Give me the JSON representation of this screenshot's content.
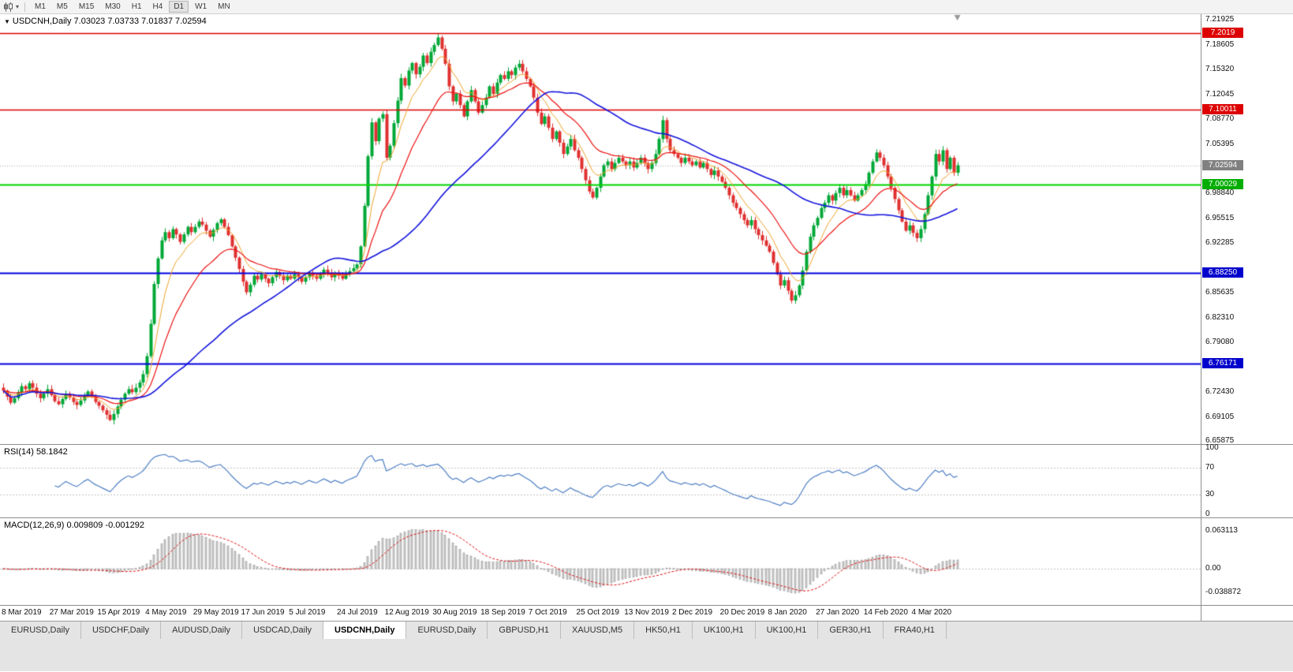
{
  "window": {
    "title": "USDCNH,Daily"
  },
  "toolbar": {
    "timeframes": [
      "M1",
      "M5",
      "M15",
      "M30",
      "H1",
      "H4",
      "D1",
      "W1",
      "MN"
    ],
    "active_timeframe": "D1"
  },
  "chart": {
    "symbol": "USDCNH",
    "period": "Daily",
    "ohlc_label": "USDCNH,Daily 7.03023 7.03733 7.01837 7.02594"
  },
  "indicators": {
    "rsi": {
      "name": "RSI(14)",
      "value": "58.1842",
      "color": "#4e7fc4",
      "levels": [
        70,
        30
      ],
      "axis_labels": [
        {
          "text": "100",
          "value": 100
        },
        {
          "text": "70",
          "value": 70
        },
        {
          "text": "30",
          "value": 30
        },
        {
          "text": "0",
          "value": 0
        }
      ]
    },
    "macd": {
      "name": "MACD(12,26,9)",
      "values": "0.009809 -0.001292",
      "hist_color": "#cccccc",
      "hist_outline": "#9a9a9a",
      "signal_color": "#e01010",
      "axis_labels": [
        {
          "text": "0.063113",
          "value": 0.063113
        },
        {
          "text": "0.00",
          "value": 0
        },
        {
          "text": "-0.038872",
          "value": -0.038872
        }
      ]
    }
  },
  "price_axis": {
    "ticks": [
      "7.21925",
      "7.18605",
      "7.15320",
      "7.12045",
      "7.08770",
      "7.05395",
      "6.98840",
      "6.95515",
      "6.92285",
      "6.85635",
      "6.82310",
      "6.79080",
      "6.72430",
      "6.69105",
      "6.65875"
    ],
    "badges": [
      {
        "text": "7.2019",
        "price": 7.2019,
        "color": "#dd0000"
      },
      {
        "text": "7.10011",
        "price": 7.10011,
        "color": "#dd0000"
      },
      {
        "text": "7.02594",
        "price": 7.02594,
        "color": "#808080"
      },
      {
        "text": "7.00029",
        "price": 7.00029,
        "color": "#00ad00"
      },
      {
        "text": "6.88250",
        "price": 6.8825,
        "color": "#0000cc"
      },
      {
        "text": "6.76171",
        "price": 6.76171,
        "color": "#0000cc"
      }
    ]
  },
  "date_axis": {
    "labels": [
      "8 Mar 2019",
      "27 Mar 2019",
      "15 Apr 2019",
      "4 May 2019",
      "29 May 2019",
      "17 Jun 2019",
      "5 Jul 2019",
      "24 Jul 2019",
      "12 Aug 2019",
      "30 Aug 2019",
      "18 Sep 2019",
      "7 Oct 2019",
      "25 Oct 2019",
      "13 Nov 2019",
      "2 Dec 2019",
      "20 Dec 2019",
      "8 Jan 2020",
      "27 Jan 2020",
      "14 Feb 2020",
      "4 Mar 2020"
    ],
    "candles_per_label": 13
  },
  "tabs": {
    "items": [
      "EURUSD,Daily",
      "USDCHF,Daily",
      "AUDUSD,Daily",
      "USDCAD,Daily",
      "USDCNH,Daily",
      "EURUSD,Daily",
      "GBPUSD,H1",
      "XAUUSD,M5",
      "HK50,H1",
      "UK100,H1",
      "UK100,H1",
      "GER30,H1",
      "FRA40,H1"
    ],
    "active_index": 4
  },
  "chart_data": {
    "type": "candlestick",
    "symbol": "USDCNH",
    "timeframe": "Daily",
    "x_range": [
      "8 Mar 2019",
      "13 Mar 2020"
    ],
    "ylim": [
      6.655,
      7.227
    ],
    "up_color": "#00a836",
    "down_color": "#e03030",
    "current_price": 7.02594,
    "ohlc_current": {
      "open": 7.03023,
      "high": 7.03733,
      "low": 7.01837,
      "close": 7.02594
    },
    "closes": [
      6.726,
      6.718,
      6.71,
      6.716,
      6.724,
      6.732,
      6.728,
      6.736,
      6.73,
      6.722,
      6.716,
      6.722,
      6.728,
      6.72,
      6.712,
      6.708,
      6.715,
      6.722,
      6.717,
      6.711,
      6.707,
      6.713,
      6.72,
      6.725,
      6.718,
      6.711,
      6.706,
      6.7,
      6.694,
      6.687,
      6.695,
      6.705,
      6.714,
      6.722,
      6.728,
      6.724,
      6.73,
      6.737,
      6.748,
      6.772,
      6.815,
      6.868,
      6.902,
      6.926,
      6.937,
      6.929,
      6.941,
      6.934,
      6.924,
      6.934,
      6.944,
      6.937,
      6.944,
      6.951,
      6.947,
      6.939,
      6.931,
      6.94,
      6.949,
      6.954,
      6.944,
      6.933,
      6.918,
      6.903,
      6.888,
      6.871,
      6.857,
      6.867,
      6.879,
      6.874,
      6.881,
      6.875,
      6.869,
      6.877,
      6.884,
      6.879,
      6.873,
      6.879,
      6.875,
      6.881,
      6.877,
      6.871,
      6.877,
      6.883,
      6.879,
      6.875,
      6.881,
      6.887,
      6.883,
      6.877,
      6.883,
      6.879,
      6.875,
      6.881,
      6.885,
      6.889,
      6.894,
      6.918,
      6.972,
      7.038,
      7.083,
      7.058,
      7.088,
      7.094,
      7.036,
      7.052,
      7.082,
      7.112,
      7.142,
      7.132,
      7.152,
      7.162,
      7.147,
      7.157,
      7.172,
      7.162,
      7.177,
      7.186,
      7.196,
      7.181,
      7.161,
      7.131,
      7.111,
      7.121,
      7.106,
      7.091,
      7.111,
      7.126,
      7.111,
      7.096,
      7.106,
      7.116,
      7.131,
      7.121,
      7.136,
      7.146,
      7.141,
      7.151,
      7.146,
      7.156,
      7.161,
      7.151,
      7.141,
      7.131,
      7.116,
      7.096,
      7.081,
      7.091,
      7.076,
      7.061,
      7.071,
      7.056,
      7.041,
      7.051,
      7.061,
      7.046,
      7.036,
      7.021,
      7.006,
      6.991,
      6.983,
      6.996,
      7.011,
      7.026,
      7.031,
      7.021,
      7.029,
      7.036,
      7.031,
      7.026,
      7.031,
      7.023,
      7.029,
      7.036,
      7.029,
      7.021,
      7.029,
      7.041,
      7.061,
      7.086,
      7.061,
      7.046,
      7.041,
      7.036,
      7.029,
      7.036,
      7.031,
      7.026,
      7.031,
      7.023,
      7.029,
      7.021,
      7.013,
      7.019,
      7.011,
      7.004,
      6.996,
      6.986,
      6.976,
      6.969,
      6.961,
      6.953,
      6.946,
      6.953,
      6.941,
      6.933,
      6.926,
      6.919,
      6.911,
      6.896,
      6.881,
      6.866,
      6.873,
      6.859,
      6.846,
      6.853,
      6.866,
      6.886,
      6.911,
      6.931,
      6.946,
      6.956,
      6.969,
      6.976,
      6.986,
      6.979,
      6.989,
      6.996,
      6.986,
      6.993,
      6.986,
      6.979,
      6.986,
      6.993,
      7.001,
      7.016,
      7.031,
      7.043,
      7.036,
      7.026,
      7.011,
      6.996,
      6.981,
      6.966,
      6.951,
      6.939,
      6.946,
      6.936,
      6.929,
      6.941,
      6.961,
      6.986,
      7.011,
      7.041,
      7.031,
      7.046,
      7.021,
      7.036,
      7.016,
      7.026
    ],
    "moving_averages": [
      {
        "type": "ema",
        "period": 8,
        "color": "#f0a329",
        "width": 1
      },
      {
        "type": "ema",
        "period": 20,
        "color": "#ee1111",
        "width": 1.2
      },
      {
        "type": "sma",
        "period": 50,
        "color": "#1414dd",
        "width": 1.6
      }
    ],
    "horizontal_lines": [
      {
        "price": 7.2019,
        "color": "#dd0000",
        "width": 1.5
      },
      {
        "price": 7.10011,
        "color": "#dd0000",
        "width": 1.5
      },
      {
        "price": 7.00029,
        "color": "#00d400",
        "width": 2
      },
      {
        "price": 6.8825,
        "color": "#0000e0",
        "width": 2
      },
      {
        "price": 6.76171,
        "color": "#0000e0",
        "width": 2
      }
    ],
    "rsi": {
      "period": 14,
      "current": 58.1842,
      "levels": [
        30,
        70
      ],
      "range": [
        0,
        100
      ]
    },
    "macd": {
      "fast": 12,
      "slow": 26,
      "signal": 9,
      "current_main": 0.009809,
      "current_signal": -0.001292,
      "range": [
        -0.038872,
        0.063113
      ]
    }
  }
}
